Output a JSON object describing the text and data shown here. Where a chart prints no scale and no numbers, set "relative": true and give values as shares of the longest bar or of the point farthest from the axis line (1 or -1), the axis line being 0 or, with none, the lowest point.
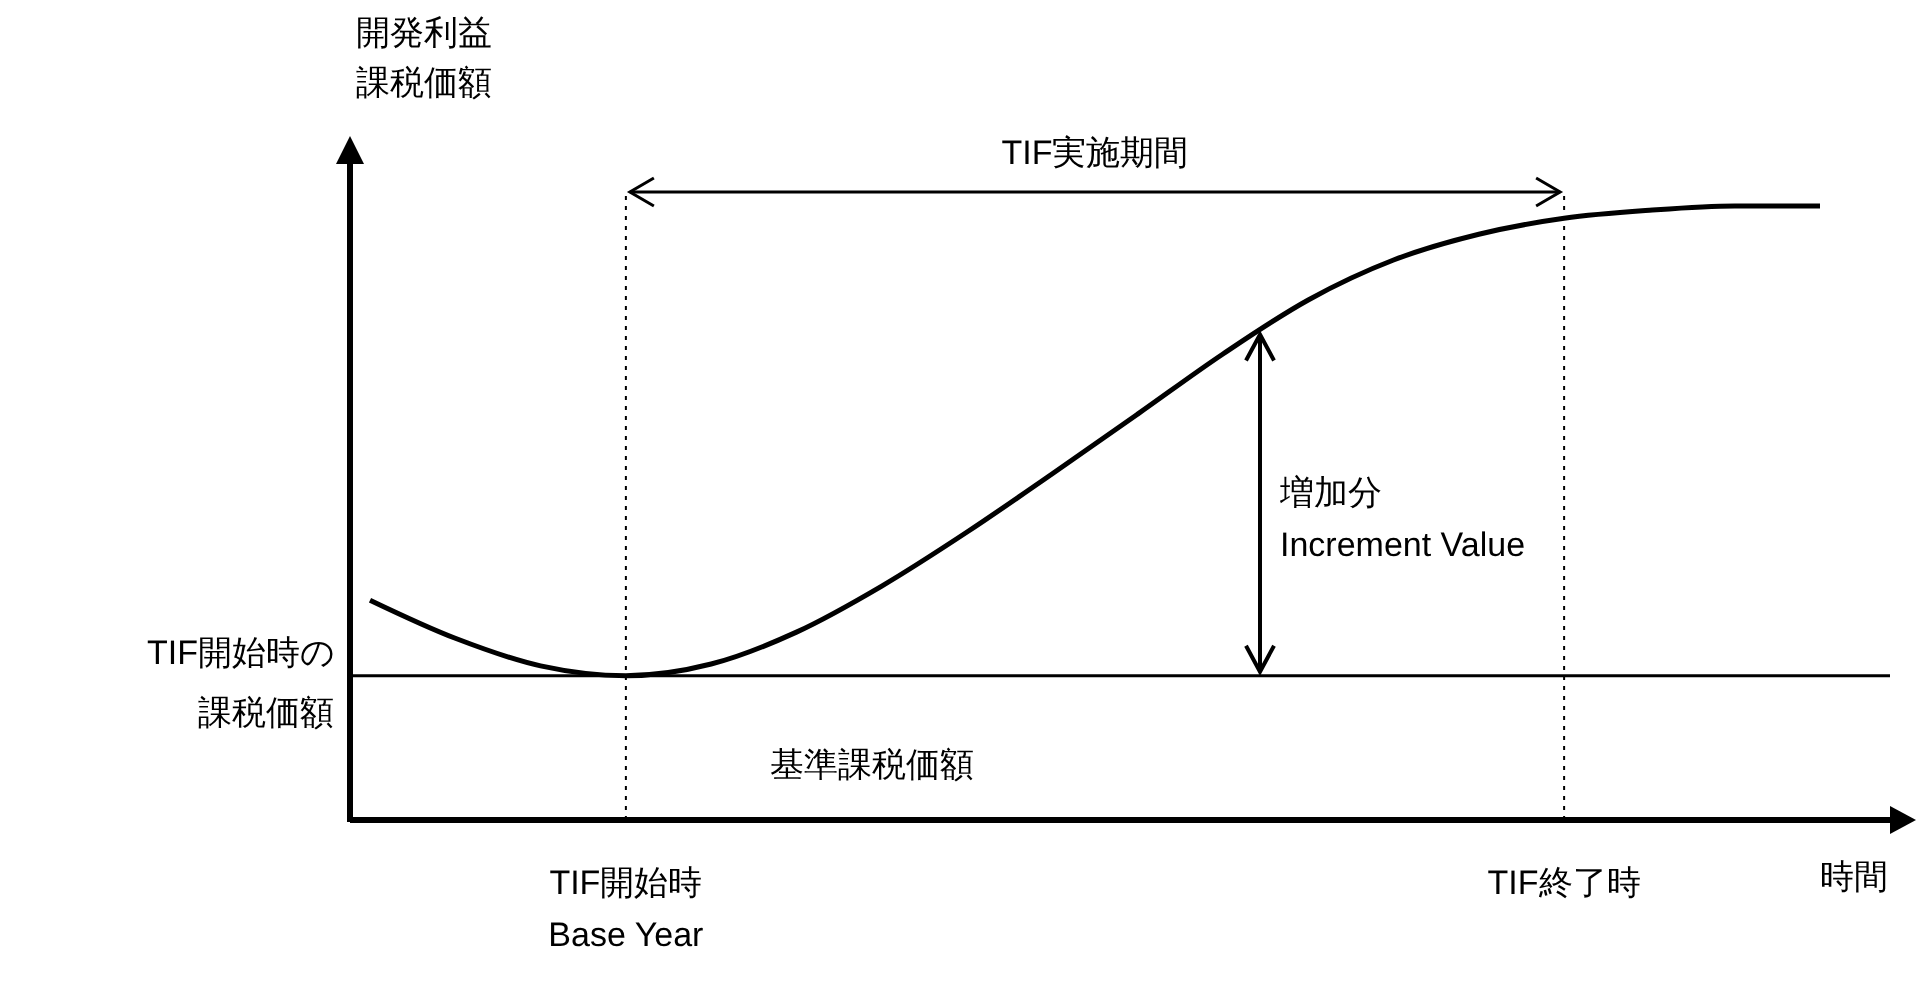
{
  "chart_data": {
    "type": "line",
    "relative": true,
    "xlabel": "時間",
    "ylabel": "開発利益課税価額",
    "categories": [
      null,
      null,
      null,
      "TIF開始時\nBase Year",
      null,
      null,
      null,
      null,
      null,
      null,
      null,
      null,
      null,
      null,
      "TIF終了時",
      null,
      null,
      null
    ],
    "series": [
      {
        "color": "#000000",
        "values": [
          0.358,
          0.296,
          0.251,
          0.235,
          0.254,
          0.306,
          0.381,
          0.469,
          0.564,
          0.661,
          0.759,
          0.847,
          0.912,
          0.954,
          0.98,
          0.993,
          1,
          1
        ]
      }
    ],
    "ref_lines": [
      {
        "axis": "y",
        "value": 0.235,
        "label": "TIF開始時の課税価額",
        "line_style": "solid"
      },
      {
        "axis": "x",
        "value": "TIF開始時\nBase Year",
        "line_style": "dotted"
      },
      {
        "axis": "x",
        "value": "TIF終了時",
        "line_style": "dotted"
      }
    ],
    "annotations": [
      "TIF実施期間",
      "増加分\nIncrement Value",
      "基準課税価額"
    ],
    "marker": "none",
    "line_style": "solid"
  }
}
